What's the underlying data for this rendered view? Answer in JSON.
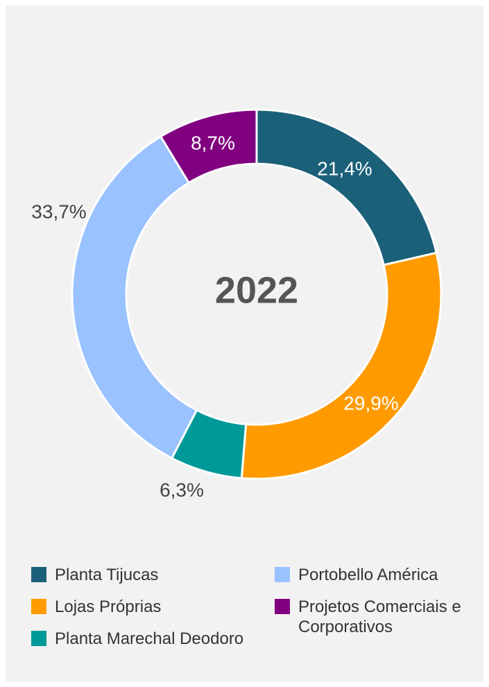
{
  "chart_data": {
    "type": "donut",
    "center_label": "2022",
    "categories": [
      "Planta Tijucas",
      "Lojas Próprias",
      "Planta Marechal Deodoro",
      "Portobello América",
      "Projetos Comerciais e Corporativos"
    ],
    "values": [
      21.4,
      29.9,
      6.3,
      33.7,
      8.7
    ],
    "value_labels": [
      "21,4%",
      "29,9%",
      "6,3%",
      "33,7%",
      "8,7%"
    ],
    "colors": [
      "#1b6079",
      "#ff9b00",
      "#009999",
      "#99c2ff",
      "#800080"
    ]
  }
}
